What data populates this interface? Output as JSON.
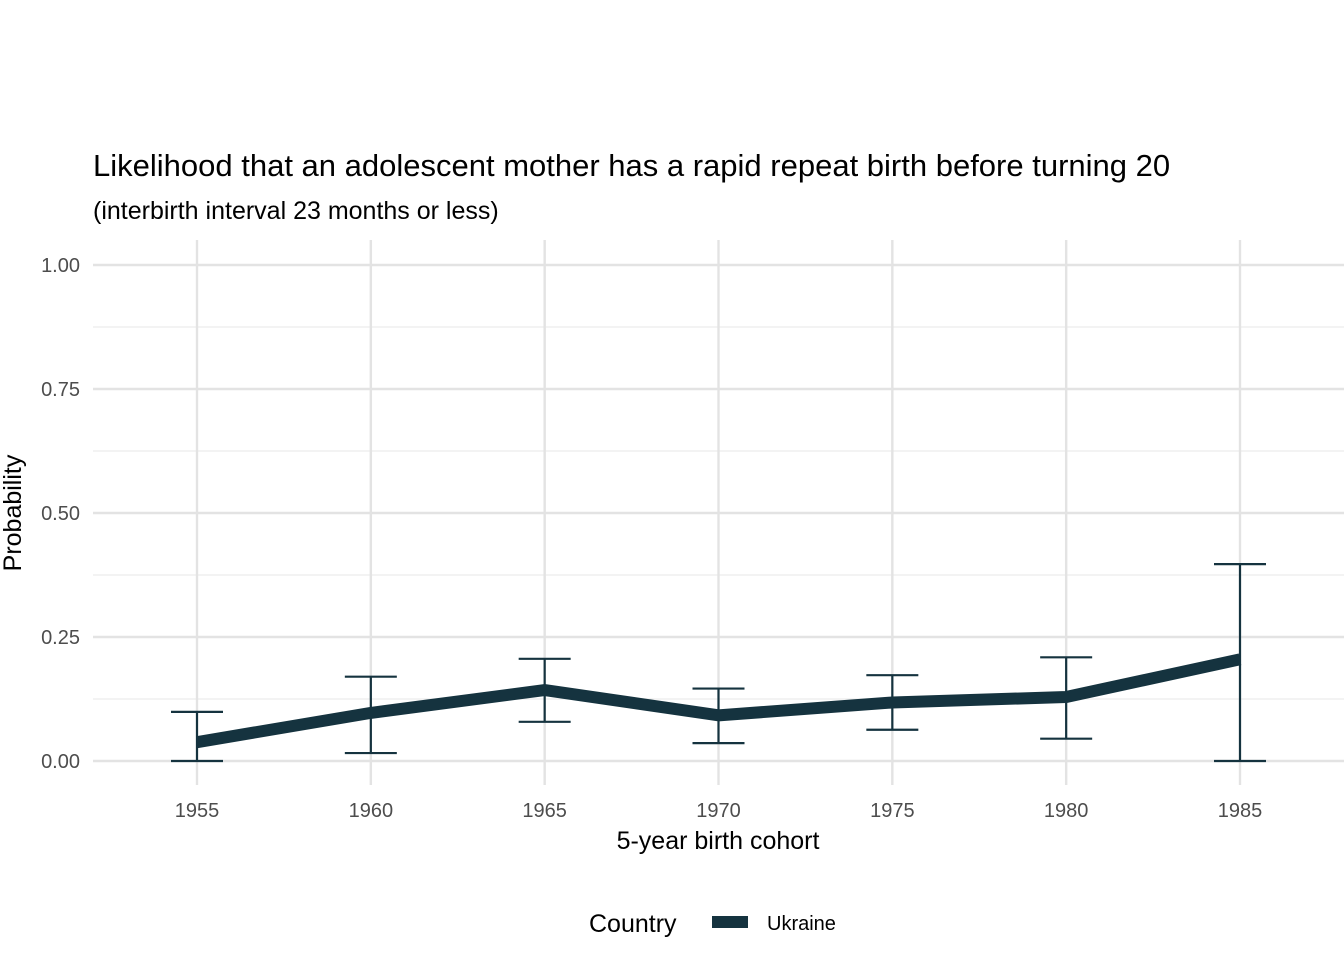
{
  "chart_data": {
    "type": "line",
    "title": "Likelihood that an adolescent mother has a rapid repeat birth before turning 20",
    "subtitle": "(interbirth interval 23 months or less)",
    "xlabel": "5-year birth cohort",
    "ylabel": "Probability",
    "x": [
      1955,
      1960,
      1965,
      1970,
      1975,
      1980,
      1985
    ],
    "x_tick_labels": [
      "1955",
      "1960",
      "1965",
      "1970",
      "1975",
      "1980",
      "1985"
    ],
    "y_ticks": [
      0,
      0.25,
      0.5,
      0.75,
      1.0
    ],
    "y_tick_labels": [
      "0.00",
      "0.25",
      "0.50",
      "0.75",
      "1.00"
    ],
    "ylim": [
      0,
      1.0
    ],
    "xlim": [
      1955,
      1985
    ],
    "grid": true,
    "legend": {
      "title": "Country",
      "position": "bottom"
    },
    "series": [
      {
        "name": "Ukraine",
        "color": "#15333f",
        "values": [
          0.038,
          0.097,
          0.143,
          0.092,
          0.118,
          0.129,
          0.205
        ],
        "lower": [
          0.0,
          0.016,
          0.079,
          0.036,
          0.063,
          0.045,
          0.0
        ],
        "upper": [
          0.099,
          0.17,
          0.206,
          0.146,
          0.173,
          0.209,
          0.397
        ]
      }
    ]
  }
}
